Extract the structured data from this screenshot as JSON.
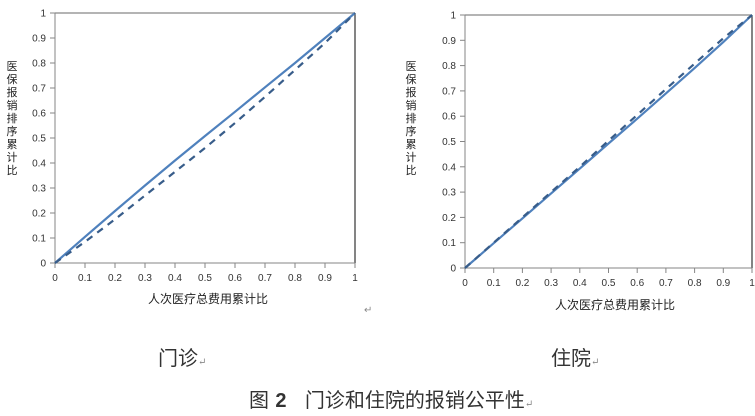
{
  "figure": {
    "number_prefix": "图",
    "number": "2",
    "title": "门诊和住院的报销公平性",
    "para_mark": "↵"
  },
  "panels": [
    {
      "caption": "门诊",
      "para_mark": "↵"
    },
    {
      "caption": "住院",
      "para_mark": "↵"
    }
  ],
  "stray_para_mark": "↵",
  "colors": {
    "solid": "#4F81BD",
    "dashed": "#385D8A",
    "axis": "#868686"
  },
  "chart_data": [
    {
      "type": "line",
      "title": "门诊",
      "xlabel": "人次医疗总费用累计比",
      "ylabel": "医保报销排序累计比",
      "xlim": [
        0,
        1
      ],
      "ylim": [
        0,
        1
      ],
      "x_ticks": [
        "0",
        "0.1",
        "0.2",
        "0.3",
        "0.4",
        "0.5",
        "0.6",
        "0.7",
        "0.8",
        "0.9",
        "1"
      ],
      "y_ticks": [
        "0",
        "0.1",
        "0.2",
        "0.3",
        "0.4",
        "0.5",
        "0.6",
        "0.7",
        "0.8",
        "0.9",
        "1"
      ],
      "grid": false,
      "legend": "none",
      "x": [
        0,
        0.1,
        0.2,
        0.3,
        0.4,
        0.5,
        0.6,
        0.7,
        0.8,
        0.9,
        1
      ],
      "series": [
        {
          "name": "solid",
          "style": "solid",
          "values": [
            0,
            0.105,
            0.208,
            0.31,
            0.41,
            0.508,
            0.605,
            0.703,
            0.8,
            0.9,
            1
          ]
        },
        {
          "name": "dashed",
          "style": "dashed",
          "values": [
            0,
            0.085,
            0.175,
            0.27,
            0.365,
            0.46,
            0.56,
            0.665,
            0.772,
            0.88,
            1
          ]
        }
      ]
    },
    {
      "type": "line",
      "title": "住院",
      "xlabel": "人次医疗总费用累计比",
      "ylabel": "医保报销排序累计比",
      "xlim": [
        0,
        1
      ],
      "ylim": [
        0,
        1
      ],
      "x_ticks": [
        "0",
        "0.1",
        "0.2",
        "0.3",
        "0.4",
        "0.5",
        "0.6",
        "0.7",
        "0.8",
        "0.9",
        "1"
      ],
      "y_ticks": [
        "0",
        "0.1",
        "0.2",
        "0.3",
        "0.4",
        "0.5",
        "0.6",
        "0.7",
        "0.8",
        "0.9",
        "1"
      ],
      "grid": false,
      "legend": "none",
      "x": [
        0,
        0.1,
        0.2,
        0.3,
        0.4,
        0.5,
        0.6,
        0.7,
        0.8,
        0.9,
        1
      ],
      "series": [
        {
          "name": "solid",
          "style": "solid",
          "values": [
            0,
            0.098,
            0.196,
            0.295,
            0.393,
            0.492,
            0.59,
            0.69,
            0.79,
            0.893,
            1
          ]
        },
        {
          "name": "dashed",
          "style": "dashed",
          "values": [
            0,
            0.1,
            0.2,
            0.3,
            0.4,
            0.503,
            0.605,
            0.707,
            0.808,
            0.908,
            1
          ]
        }
      ]
    }
  ]
}
